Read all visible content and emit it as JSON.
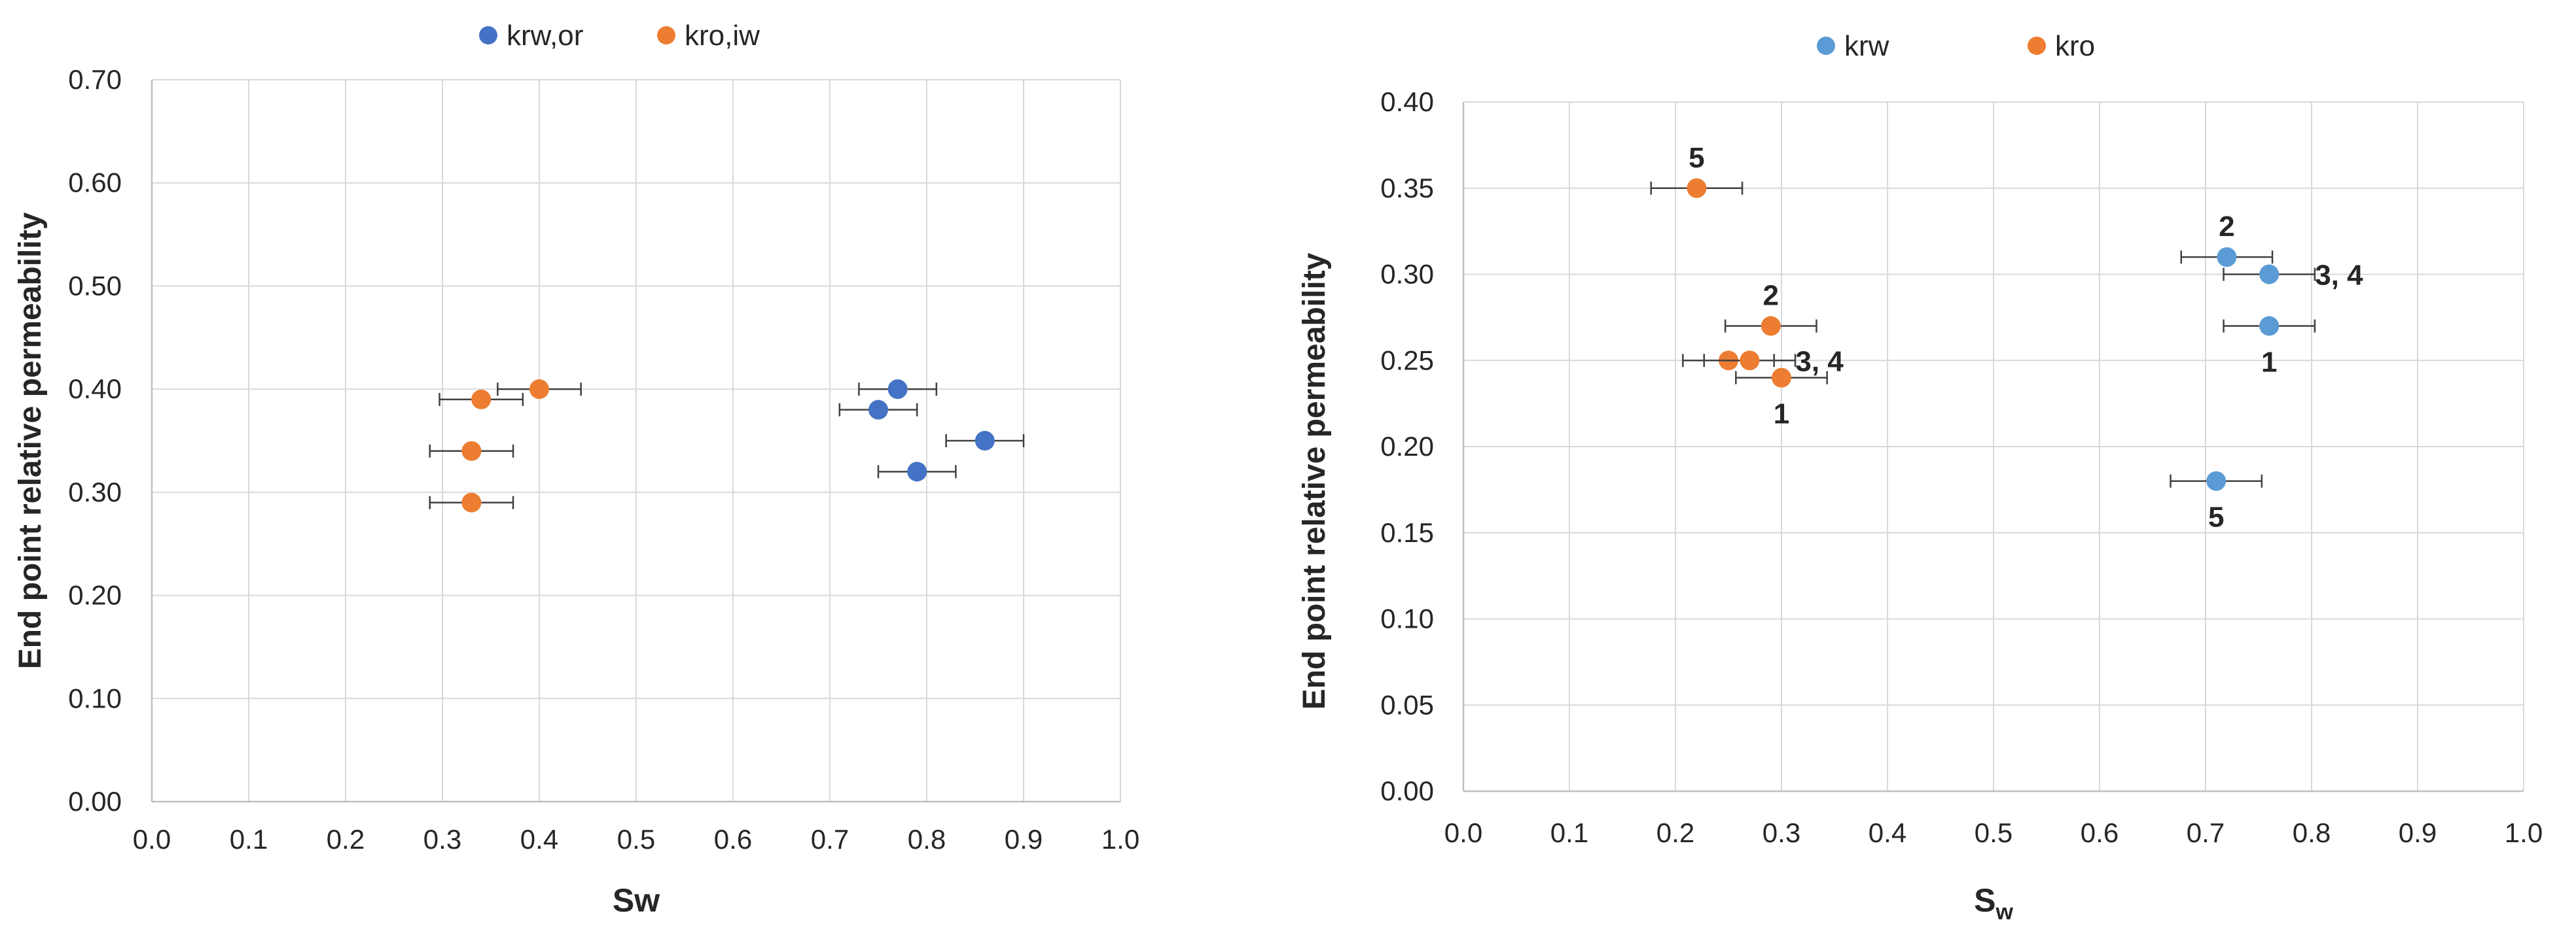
{
  "chart_data": [
    {
      "type": "scatter",
      "xlabel": "Sw",
      "ylabel": "End point relative permeability",
      "xlim": [
        0.0,
        1.0
      ],
      "ylim": [
        0.0,
        0.7
      ],
      "x_ticks": [
        "0.0",
        "0.1",
        "0.2",
        "0.3",
        "0.4",
        "0.5",
        "0.6",
        "0.7",
        "0.8",
        "0.9",
        "1.0"
      ],
      "y_ticks": [
        "0.00",
        "0.10",
        "0.20",
        "0.30",
        "0.40",
        "0.50",
        "0.60",
        "0.70"
      ],
      "grid": true,
      "legend_position": "top-center",
      "series": [
        {
          "name": "krw,or",
          "color": "#4472C4",
          "points": [
            {
              "x": 0.77,
              "y": 0.4,
              "xerr": 0.04
            },
            {
              "x": 0.75,
              "y": 0.38,
              "xerr": 0.04
            },
            {
              "x": 0.86,
              "y": 0.35,
              "xerr": 0.04
            },
            {
              "x": 0.79,
              "y": 0.32,
              "xerr": 0.04
            }
          ]
        },
        {
          "name": "kro,iw",
          "color": "#ED7D31",
          "points": [
            {
              "x": 0.4,
              "y": 0.4,
              "xerr": 0.043
            },
            {
              "x": 0.34,
              "y": 0.39,
              "xerr": 0.043
            },
            {
              "x": 0.33,
              "y": 0.34,
              "xerr": 0.043
            },
            {
              "x": 0.33,
              "y": 0.29,
              "xerr": 0.043
            }
          ]
        }
      ]
    },
    {
      "type": "scatter",
      "xlabel": "S",
      "xlabel_subscript": "w",
      "ylabel": "End point relative permeability",
      "xlim": [
        0.0,
        1.0
      ],
      "ylim": [
        0.0,
        0.4
      ],
      "x_ticks": [
        "0.0",
        "0.1",
        "0.2",
        "0.3",
        "0.4",
        "0.5",
        "0.6",
        "0.7",
        "0.8",
        "0.9",
        "1.0"
      ],
      "y_ticks": [
        "0.00",
        "0.05",
        "0.10",
        "0.15",
        "0.20",
        "0.25",
        "0.30",
        "0.35",
        "0.40"
      ],
      "grid": true,
      "legend_position": "top-center",
      "series": [
        {
          "name": "krw",
          "color": "#5B9BD5",
          "points": [
            {
              "x": 0.72,
              "y": 0.31,
              "xerr": 0.043
            },
            {
              "x": 0.76,
              "y": 0.3,
              "xerr": 0.043
            },
            {
              "x": 0.76,
              "y": 0.27,
              "xerr": 0.043
            },
            {
              "x": 0.71,
              "y": 0.18,
              "xerr": 0.043
            }
          ]
        },
        {
          "name": "kro",
          "color": "#ED7D31",
          "points": [
            {
              "x": 0.22,
              "y": 0.35,
              "xerr": 0.043
            },
            {
              "x": 0.29,
              "y": 0.27,
              "xerr": 0.043
            },
            {
              "x": 0.25,
              "y": 0.25,
              "xerr": 0.043
            },
            {
              "x": 0.27,
              "y": 0.25,
              "xerr": 0.043
            },
            {
              "x": 0.3,
              "y": 0.24,
              "xerr": 0.043
            }
          ]
        }
      ],
      "annotations": [
        {
          "text": "5",
          "x": 0.22,
          "y": 0.35,
          "placement": "above"
        },
        {
          "text": "2",
          "x": 0.29,
          "y": 0.27,
          "placement": "above"
        },
        {
          "text": "3, 4",
          "x": 0.27,
          "y": 0.25,
          "placement": "right"
        },
        {
          "text": "1",
          "x": 0.3,
          "y": 0.24,
          "placement": "below"
        },
        {
          "text": "2",
          "x": 0.72,
          "y": 0.31,
          "placement": "above"
        },
        {
          "text": "3, 4",
          "x": 0.76,
          "y": 0.3,
          "placement": "right"
        },
        {
          "text": "1",
          "x": 0.76,
          "y": 0.27,
          "placement": "below"
        },
        {
          "text": "5",
          "x": 0.71,
          "y": 0.18,
          "placement": "below"
        }
      ]
    }
  ]
}
